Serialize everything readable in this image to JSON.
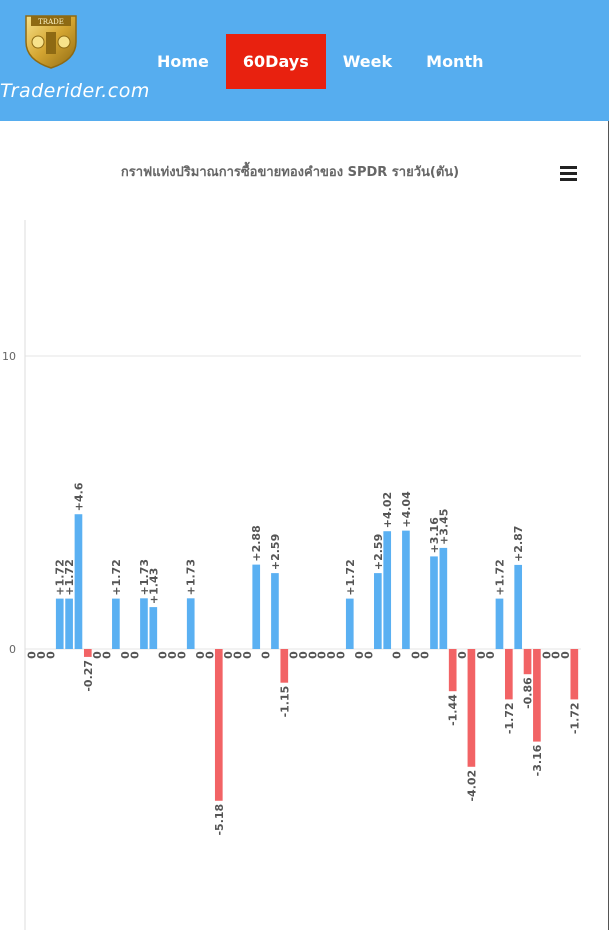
{
  "header": {
    "brand": "Traderider.com",
    "logo_text": "TRADE",
    "nav": [
      {
        "label": "Home",
        "active": false
      },
      {
        "label": "60Days",
        "active": true
      },
      {
        "label": "Week",
        "active": false
      },
      {
        "label": "Month",
        "active": false
      }
    ],
    "accent_color": "#56adef",
    "active_color": "#e8210f"
  },
  "menu_icon": "hamburger-menu-icon",
  "chart_data": {
    "type": "bar",
    "title": "กราฟแท่งปริมาณการซื้อขายทองคำของ SPDR รายวัน(ตัน)",
    "xlabel": "",
    "ylabel": "",
    "ylim": [
      -10,
      14.7
    ],
    "ytick_labels": [
      "0",
      "10"
    ],
    "grid": true,
    "colors": {
      "positive": "#5ab0f2",
      "negative": "#f26365"
    },
    "values": [
      0,
      0,
      0,
      1.72,
      1.72,
      4.6,
      -0.27,
      0,
      0,
      1.72,
      0,
      0,
      1.73,
      1.43,
      0,
      0,
      0,
      1.73,
      0,
      0,
      -5.18,
      0,
      0,
      0,
      2.88,
      0,
      2.59,
      -1.15,
      0,
      0,
      0,
      0,
      0,
      0,
      1.72,
      0,
      0,
      2.59,
      4.02,
      0,
      4.04,
      0,
      0,
      3.16,
      3.45,
      -1.44,
      0,
      -4.02,
      0,
      0,
      1.72,
      -1.72,
      2.87,
      -0.86,
      -3.16,
      0,
      0,
      0,
      -1.72
    ],
    "data_labels": [
      "0",
      "0",
      "0",
      "+1.72",
      "+1.72",
      "+4.6",
      "-0.27",
      "0",
      "0",
      "+1.72",
      "0",
      "0",
      "+1.73",
      "+1.43",
      "0",
      "0",
      "0",
      "+1.73",
      "0",
      "0",
      "-5.18",
      "0",
      "0",
      "0",
      "+2.88",
      "0",
      "+2.59",
      "-1.15",
      "0",
      "0",
      "0",
      "0",
      "0",
      "0",
      "+1.72",
      "0",
      "0",
      "+2.59",
      "+4.02",
      "0",
      "+4.04",
      "0",
      "0",
      "+3.16",
      "+3.45",
      "-1.44",
      "0",
      "-4.02",
      "0",
      "0",
      "+1.72",
      "-1.72",
      "+2.87",
      "-0.86",
      "-3.16",
      "0",
      "0",
      "0",
      "-1.72"
    ]
  }
}
